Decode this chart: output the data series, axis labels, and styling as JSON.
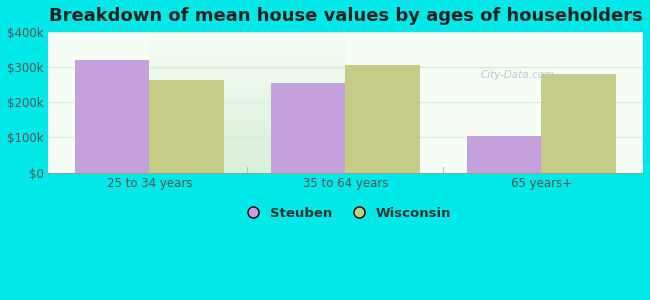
{
  "title": "Breakdown of mean house values by ages of householders",
  "categories": [
    "25 to 34 years",
    "35 to 64 years",
    "65 years+"
  ],
  "steuben_values": [
    320000,
    255000,
    105000
  ],
  "wisconsin_values": [
    265000,
    305000,
    280000
  ],
  "steuben_color": "#c4a0dc",
  "wisconsin_color": "#c5cc88",
  "background_outer": "#00e8e8",
  "background_inner_top": "#f5fdf5",
  "background_inner_bottom": "#d8f0d8",
  "ylim": [
    0,
    400000
  ],
  "yticks": [
    0,
    100000,
    200000,
    300000,
    400000
  ],
  "ytick_labels": [
    "$0",
    "$100k",
    "$200k",
    "$300k",
    "$400k"
  ],
  "legend_labels": [
    "Steuben",
    "Wisconsin"
  ],
  "bar_width": 0.38,
  "title_fontsize": 13,
  "watermark_color": "#a8c8cc",
  "grid_color": "#d8eed8",
  "separator_color": "#b0c8b0"
}
